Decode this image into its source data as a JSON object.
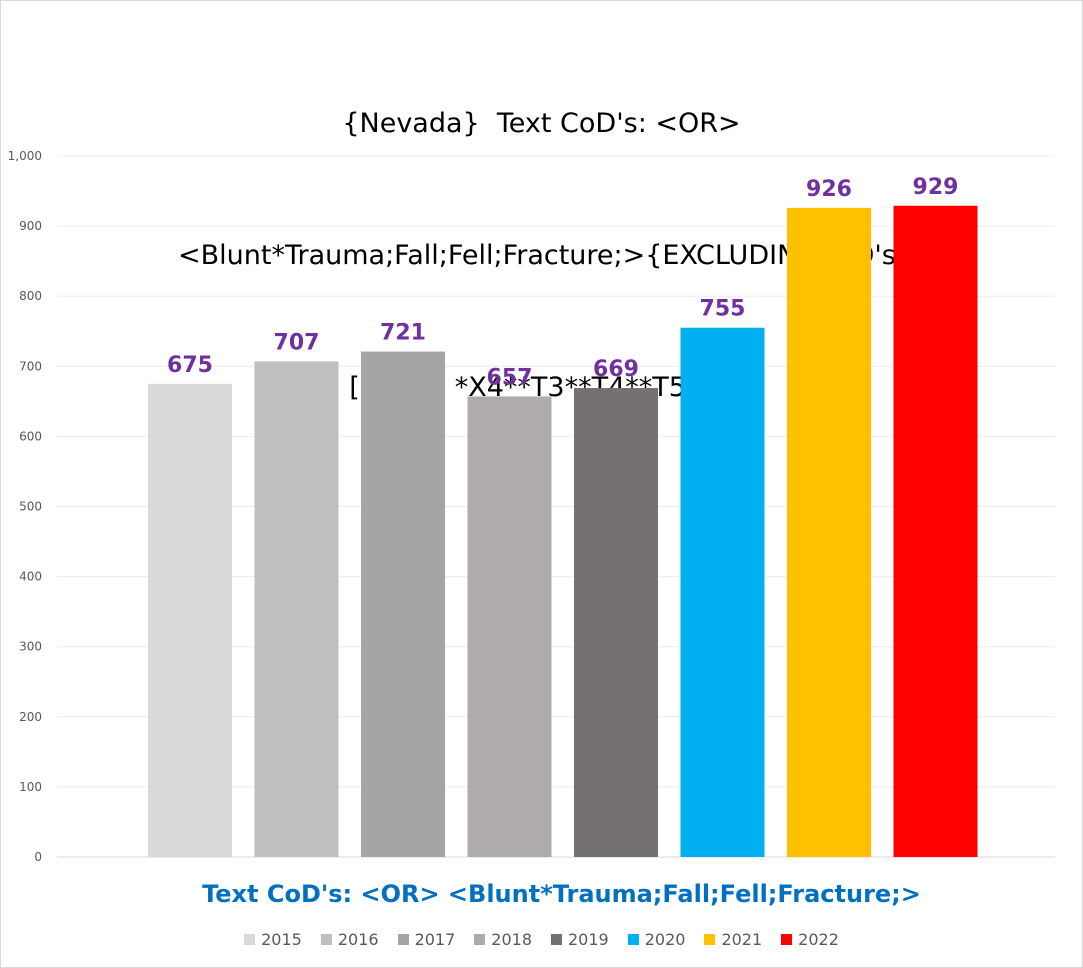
{
  "chart_data": {
    "type": "bar",
    "title_lines": [
      "{Nevada}  Text CoD's: <OR>",
      "<Blunt*Trauma;Fall;Fell;Fracture;>{EXCLUDING ICD's:",
      "[UCoD] *X4**T3**T4**T51*}"
    ],
    "xlabel": "Text CoD's: <OR> <Blunt*Trauma;Fall;Fell;Fracture;>",
    "ylabel": "",
    "ylim": [
      0,
      1000
    ],
    "yticks": [
      0,
      100,
      200,
      300,
      400,
      500,
      600,
      700,
      800,
      900,
      1000
    ],
    "ytick_labels": [
      "0",
      "100",
      "200",
      "300",
      "400",
      "500",
      "600",
      "700",
      "800",
      "900",
      "1,000"
    ],
    "grid": true,
    "legend_position": "bottom",
    "label_color": "#7030a0",
    "series": [
      {
        "name": "2015",
        "value": 675,
        "label": "675",
        "color": "#d9d9d9"
      },
      {
        "name": "2016",
        "value": 707,
        "label": "707",
        "color": "#bfbfbf"
      },
      {
        "name": "2017",
        "value": 721,
        "label": "721",
        "color": "#a5a5a5"
      },
      {
        "name": "2018",
        "value": 657,
        "label": "657",
        "color": "#afabab"
      },
      {
        "name": "2019",
        "value": 669,
        "label": "669",
        "color": "#767171"
      },
      {
        "name": "2020",
        "value": 755,
        "label": "755",
        "color": "#00b0f0"
      },
      {
        "name": "2021",
        "value": 926,
        "label": "926",
        "color": "#ffc000"
      },
      {
        "name": "2022",
        "value": 929,
        "label": "929",
        "color": "#ff0000"
      }
    ]
  }
}
